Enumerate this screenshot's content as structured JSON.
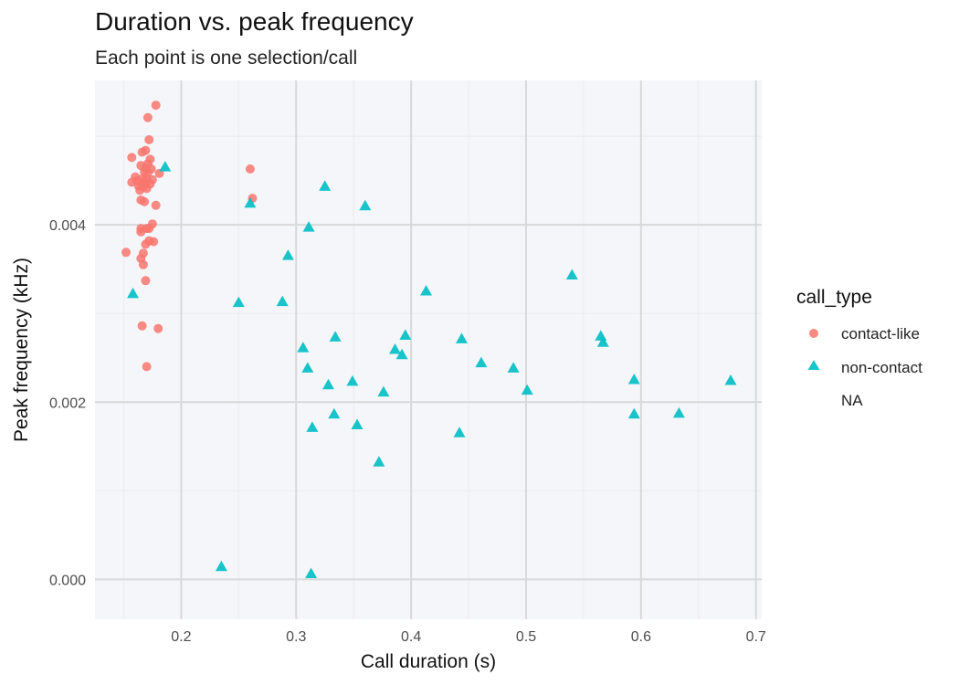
{
  "chart_data": {
    "type": "scatter",
    "title": "Duration vs. peak frequency",
    "subtitle": "Each point is one selection/call",
    "xlabel": "Call duration (s)",
    "ylabel": "Peak frequency (kHz)",
    "xlim": [
      0.125,
      0.705
    ],
    "ylim": [
      -0.00045,
      0.00563
    ],
    "x_ticks": [
      0.2,
      0.3,
      0.4,
      0.5,
      0.6,
      0.7
    ],
    "x_tick_labels": [
      "0.2",
      "0.3",
      "0.4",
      "0.5",
      "0.6",
      "0.7"
    ],
    "y_ticks": [
      0.0,
      0.002,
      0.004
    ],
    "y_tick_labels": [
      "0.000",
      "0.002",
      "0.004"
    ],
    "grid": true,
    "legend": {
      "title": "call_type",
      "position": "right",
      "entries": [
        "contact-like",
        "non-contact",
        "NA"
      ]
    },
    "colors": {
      "panel_background": "#f5f6fa",
      "grid_major": "#d9d9d9",
      "grid_minor": "#ebebeb",
      "contact-like": "#f8766d",
      "non-contact": "#00bfc4"
    },
    "series": [
      {
        "name": "contact-like",
        "marker": "circle",
        "points": [
          [
            0.178,
            0.00535
          ],
          [
            0.171,
            0.00521
          ],
          [
            0.172,
            0.00496
          ],
          [
            0.169,
            0.00484
          ],
          [
            0.166,
            0.00482
          ],
          [
            0.157,
            0.00476
          ],
          [
            0.173,
            0.00474
          ],
          [
            0.171,
            0.00469
          ],
          [
            0.165,
            0.00467
          ],
          [
            0.169,
            0.00464
          ],
          [
            0.174,
            0.00463
          ],
          [
            0.168,
            0.0046
          ],
          [
            0.171,
            0.00459
          ],
          [
            0.181,
            0.00458
          ],
          [
            0.16,
            0.00454
          ],
          [
            0.166,
            0.00452
          ],
          [
            0.17,
            0.00452
          ],
          [
            0.175,
            0.00451
          ],
          [
            0.162,
            0.0045
          ],
          [
            0.157,
            0.00448
          ],
          [
            0.169,
            0.00448
          ],
          [
            0.173,
            0.00446
          ],
          [
            0.163,
            0.00444
          ],
          [
            0.167,
            0.00443
          ],
          [
            0.17,
            0.00441
          ],
          [
            0.164,
            0.00439
          ],
          [
            0.26,
            0.00463
          ],
          [
            0.262,
            0.0043
          ],
          [
            0.165,
            0.00428
          ],
          [
            0.168,
            0.00426
          ],
          [
            0.178,
            0.00422
          ],
          [
            0.175,
            0.00401
          ],
          [
            0.165,
            0.00396
          ],
          [
            0.17,
            0.00396
          ],
          [
            0.172,
            0.00396
          ],
          [
            0.165,
            0.00392
          ],
          [
            0.172,
            0.00382
          ],
          [
            0.176,
            0.00381
          ],
          [
            0.169,
            0.00378
          ],
          [
            0.152,
            0.00369
          ],
          [
            0.167,
            0.00368
          ],
          [
            0.165,
            0.00362
          ],
          [
            0.167,
            0.00355
          ],
          [
            0.169,
            0.00337
          ],
          [
            0.166,
            0.00286
          ],
          [
            0.18,
            0.00283
          ],
          [
            0.17,
            0.0024
          ]
        ]
      },
      {
        "name": "non-contact",
        "marker": "triangle",
        "points": [
          [
            0.186,
            0.00465
          ],
          [
            0.325,
            0.00443
          ],
          [
            0.26,
            0.00424
          ],
          [
            0.36,
            0.00421
          ],
          [
            0.311,
            0.00397
          ],
          [
            0.293,
            0.00365
          ],
          [
            0.54,
            0.00343
          ],
          [
            0.413,
            0.00325
          ],
          [
            0.158,
            0.00322
          ],
          [
            0.25,
            0.00312
          ],
          [
            0.288,
            0.00313
          ],
          [
            0.395,
            0.00275
          ],
          [
            0.334,
            0.00273
          ],
          [
            0.565,
            0.00274
          ],
          [
            0.444,
            0.00271
          ],
          [
            0.567,
            0.00267
          ],
          [
            0.306,
            0.00261
          ],
          [
            0.386,
            0.00259
          ],
          [
            0.392,
            0.00253
          ],
          [
            0.461,
            0.00244
          ],
          [
            0.31,
            0.00238
          ],
          [
            0.489,
            0.00238
          ],
          [
            0.594,
            0.00225
          ],
          [
            0.678,
            0.00224
          ],
          [
            0.349,
            0.00223
          ],
          [
            0.328,
            0.00219
          ],
          [
            0.501,
            0.00213
          ],
          [
            0.376,
            0.00211
          ],
          [
            0.333,
            0.00186
          ],
          [
            0.594,
            0.00186
          ],
          [
            0.633,
            0.00187
          ],
          [
            0.353,
            0.00174
          ],
          [
            0.314,
            0.00171
          ],
          [
            0.442,
            0.00165
          ],
          [
            0.372,
            0.00132
          ],
          [
            0.235,
            0.00014
          ],
          [
            0.313,
            6e-05
          ]
        ]
      }
    ]
  }
}
